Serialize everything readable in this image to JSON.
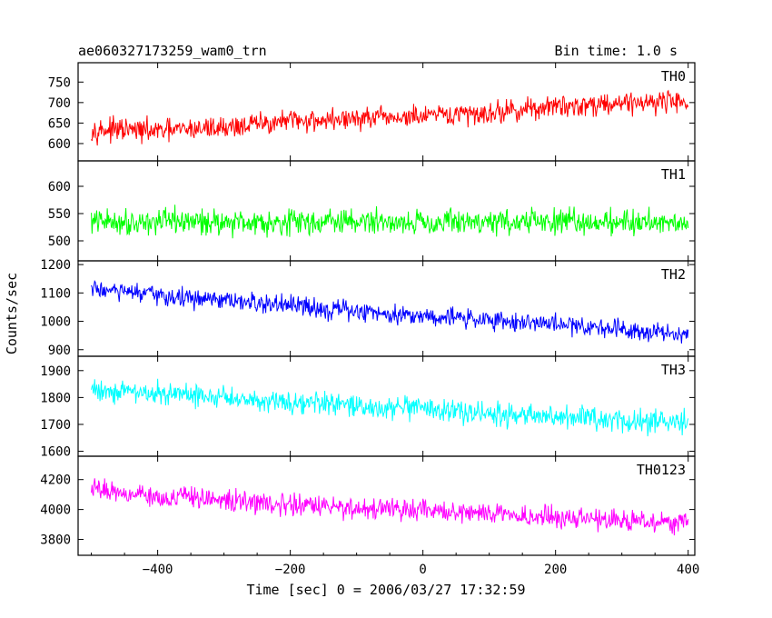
{
  "chart_data": {
    "type": "line",
    "title_left": "ae060327173259_wam0_trn",
    "title_right": "Bin time: 1.0 s",
    "xlabel": "Time [sec] 0 = 2006/03/27 17:32:59",
    "ylabel": "Counts/sec",
    "xlim": [
      -520,
      410
    ],
    "x_ticks": [
      -400,
      -200,
      0,
      200,
      400
    ],
    "x_tick_labels": [
      "−400",
      "−200",
      "0",
      "200",
      "400"
    ],
    "x_range": [
      -500,
      400
    ],
    "bin_time_s": 1.0,
    "grid": false,
    "legend": "none",
    "panels": [
      {
        "name": "TH0",
        "color": "#ff0000",
        "ylim": [
          560,
          795
        ],
        "yticks": [
          600,
          650,
          700,
          750
        ],
        "trend": {
          "x": [
            -500,
            -400,
            -300,
            -200,
            -100,
            0,
            100,
            200,
            300,
            400
          ],
          "y": [
            635,
            630,
            640,
            655,
            660,
            665,
            675,
            690,
            700,
            705
          ]
        },
        "noise_amplitude": 35
      },
      {
        "name": "TH1",
        "color": "#00ff00",
        "ylim": [
          465,
          645
        ],
        "yticks": [
          500,
          550,
          600
        ],
        "trend": {
          "x": [
            -500,
            -250,
            0,
            250,
            400
          ],
          "y": [
            535,
            535,
            535,
            535,
            535
          ]
        },
        "noise_amplitude": 30
      },
      {
        "name": "TH2",
        "color": "#0000ff",
        "ylim": [
          880,
          1210
        ],
        "yticks": [
          900,
          1000,
          1100,
          1200
        ],
        "trend": {
          "x": [
            -500,
            -400,
            -300,
            -200,
            -100,
            0,
            100,
            200,
            300,
            400
          ],
          "y": [
            1115,
            1090,
            1070,
            1055,
            1035,
            1020,
            1005,
            990,
            975,
            955
          ]
        },
        "noise_amplitude": 45
      },
      {
        "name": "TH3",
        "color": "#00ffff",
        "ylim": [
          1585,
          1950
        ],
        "yticks": [
          1600,
          1700,
          1800,
          1900
        ],
        "trend": {
          "x": [
            -500,
            -400,
            -300,
            -200,
            -100,
            0,
            100,
            200,
            300,
            400
          ],
          "y": [
            1830,
            1815,
            1800,
            1785,
            1765,
            1755,
            1740,
            1725,
            1715,
            1705
          ]
        },
        "noise_amplitude": 55
      },
      {
        "name": "TH0123",
        "color": "#ff00ff",
        "ylim": [
          3700,
          4350
        ],
        "yticks": [
          3800,
          4000,
          4200
        ],
        "trend": {
          "x": [
            -500,
            -400,
            -300,
            -200,
            -100,
            0,
            100,
            200,
            300,
            400
          ],
          "y": [
            4140,
            4090,
            4060,
            4030,
            4010,
            3990,
            3970,
            3950,
            3930,
            3910
          ]
        },
        "noise_amplitude": 90
      }
    ]
  }
}
